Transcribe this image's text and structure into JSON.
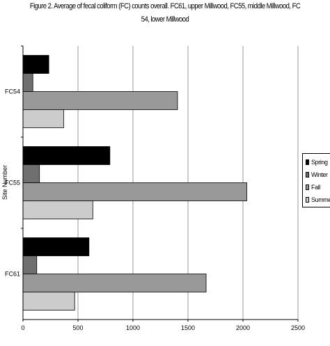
{
  "title_line1": "Figure 2. Average of fecal coliform (FC) counts overall. FC61, upper Millwood, FC55, middle Millwood, FC",
  "title_line2": "54, lower Millwood",
  "chart_data": {
    "type": "bar",
    "orientation": "horizontal",
    "title": "Figure 2. Average of fecal coliform (FC) counts overall. FC61, upper Millwood, FC55, middle Millwood, FC 54, lower Millwood",
    "ylabel": "Site Number",
    "xlabel": "",
    "categories": [
      "FC54",
      "FC55",
      "FC61"
    ],
    "series": [
      {
        "name": "Spring",
        "color": "#000000",
        "values": [
          235,
          790,
          600
        ]
      },
      {
        "name": "Winter",
        "color": "#6f6f6f",
        "values": [
          90,
          150,
          125
        ]
      },
      {
        "name": "Fall",
        "color": "#999999",
        "values": [
          1405,
          2035,
          1665
        ]
      },
      {
        "name": "Summer",
        "color": "#cccccc",
        "values": [
          370,
          635,
          470
        ]
      }
    ],
    "xlim": [
      0,
      2500
    ],
    "xticks": [
      0,
      500,
      1000,
      1500,
      2000,
      2500
    ],
    "grid": true,
    "legend_position": "right"
  }
}
